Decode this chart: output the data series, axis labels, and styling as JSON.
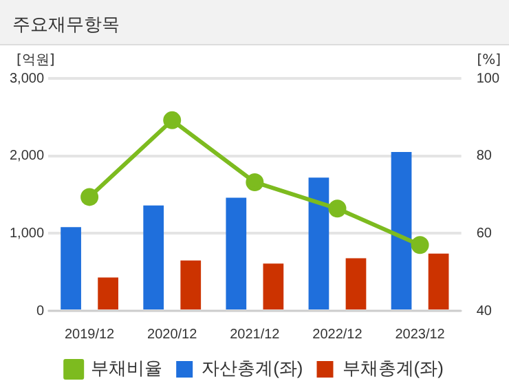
{
  "chart_data": {
    "type": "bar",
    "title": "주요재무항목",
    "ylabel": "[억원]",
    "y2label": "[%]",
    "categories": [
      "2019/12",
      "2020/12",
      "2021/12",
      "2022/12",
      "2023/12"
    ],
    "series": [
      {
        "name": "자산총계(좌)",
        "color": "#1f6fdc",
        "values": [
          1080,
          1360,
          1460,
          1720,
          2050
        ]
      },
      {
        "name": "부채총계(좌)",
        "color": "#cc3300",
        "values": [
          430,
          650,
          610,
          680,
          740
        ]
      },
      {
        "name": "부채비율",
        "type": "line",
        "axis": "y2",
        "color": "#7dbb1f",
        "values": [
          69.4,
          89.2,
          73.2,
          66.4,
          57.0
        ]
      }
    ],
    "ylim": [
      0,
      3000
    ],
    "yticks": [
      {
        "value": 0,
        "label": "0"
      },
      {
        "value": 1000,
        "label": "1,000"
      },
      {
        "value": 2000,
        "label": "2,000"
      },
      {
        "value": 3000,
        "label": "3,000"
      }
    ],
    "y2lim": [
      40,
      100
    ],
    "y2ticks": [
      40,
      60,
      80,
      100
    ],
    "grid": "y",
    "legend": "bottom",
    "marker": "circle",
    "line_style": "solid"
  }
}
